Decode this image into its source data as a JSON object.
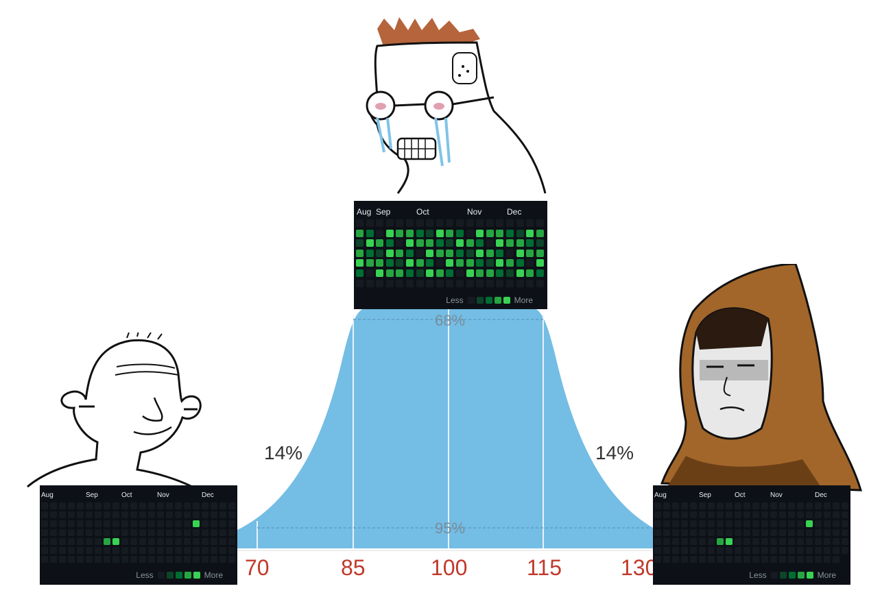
{
  "chart": {
    "left_pct": "14%",
    "right_pct": "14%",
    "band_inner": "68%",
    "band_outer": "95%",
    "ticks": [
      "70",
      "85",
      "100",
      "115",
      "130"
    ],
    "fill": "#74bde4",
    "tick_color": "#c0392b"
  },
  "panels": {
    "center": {
      "months": [
        "Aug",
        "Sep",
        "Oct",
        "Nov",
        "Dec"
      ],
      "legend_less": "Less",
      "legend_more": "More",
      "columns": 19,
      "rows": 7
    },
    "left": {
      "months": [
        "Aug",
        "Sep",
        "Oct",
        "Nov",
        "Dec"
      ],
      "legend_less": "Less",
      "legend_more": "More",
      "columns": 22,
      "rows": 7
    },
    "right": {
      "months": [
        "Aug",
        "Sep",
        "Oct",
        "Nov",
        "Dec"
      ],
      "legend_less": "Less",
      "legend_more": "More",
      "columns": 22,
      "rows": 7
    }
  },
  "palette": [
    "#161b22",
    "#0e4429",
    "#006d32",
    "#26a641",
    "#39d353"
  ],
  "icons": [
    "smiling-wojak-icon",
    "crying-nerd-wojak-icon",
    "hooded-monk-wojak-icon"
  ]
}
